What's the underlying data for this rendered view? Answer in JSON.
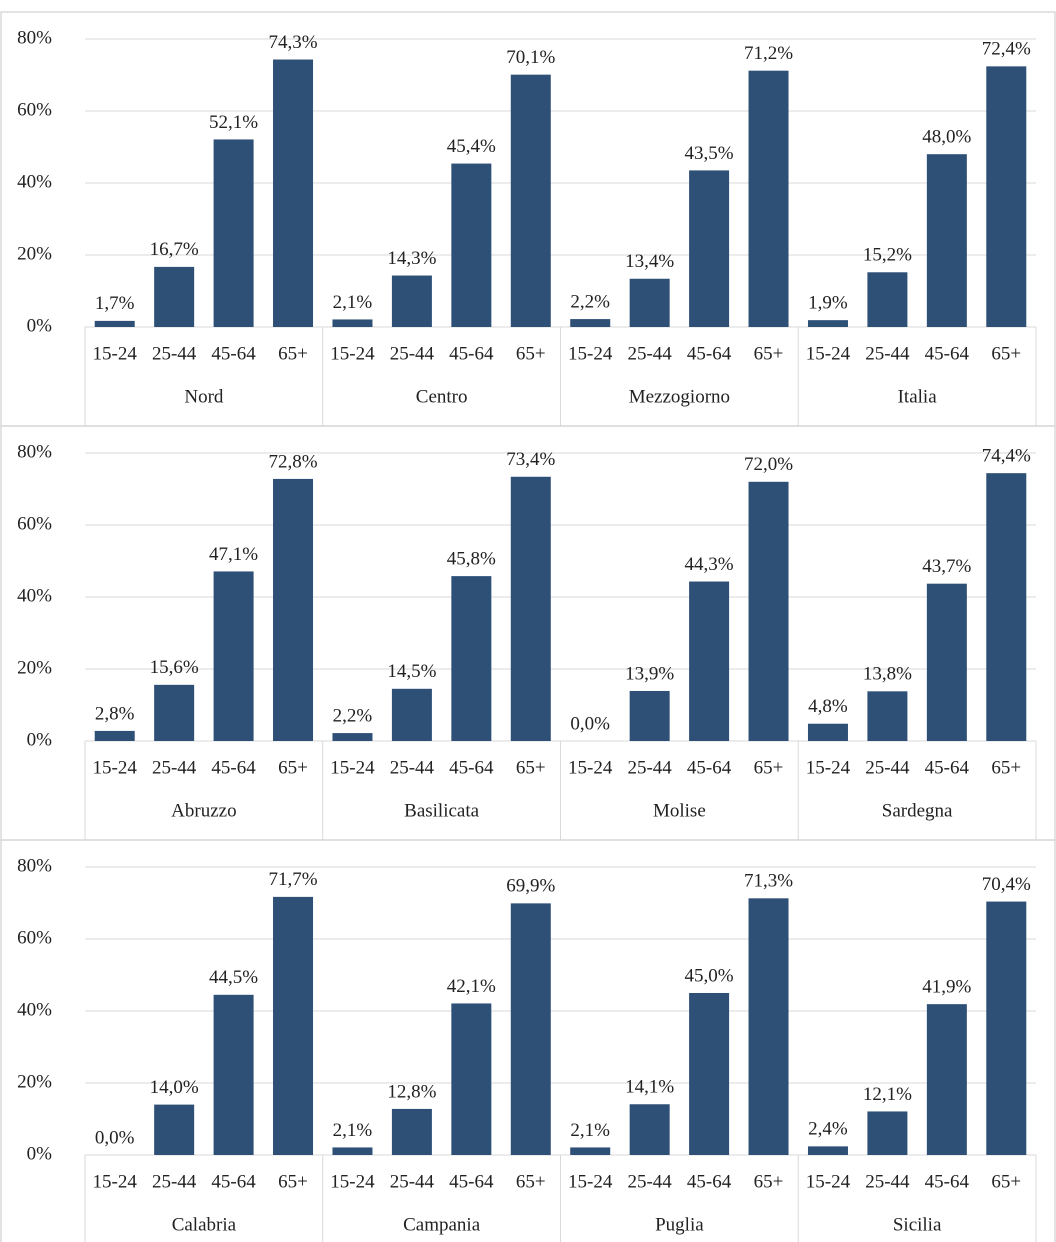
{
  "chart_data": [
    {
      "type": "bar",
      "color": "#2e5077",
      "ylim": [
        0,
        80
      ],
      "grid": true,
      "yticks": [
        {
          "value": 0,
          "label": "0%"
        },
        {
          "value": 20,
          "label": "20%"
        },
        {
          "value": 40,
          "label": "40%"
        },
        {
          "value": 60,
          "label": "60%"
        },
        {
          "value": 80,
          "label": "80%"
        }
      ],
      "groups": [
        {
          "name": "Nord",
          "categories": [
            "15-24",
            "25-44",
            "45-64",
            "65+"
          ],
          "values": [
            1.7,
            16.7,
            52.1,
            74.3
          ],
          "value_labels": [
            "1,7%",
            "16,7%",
            "52,1%",
            "74,3%"
          ]
        },
        {
          "name": "Centro",
          "categories": [
            "15-24",
            "25-44",
            "45-64",
            "65+"
          ],
          "values": [
            2.1,
            14.3,
            45.4,
            70.1
          ],
          "value_labels": [
            "2,1%",
            "14,3%",
            "45,4%",
            "70,1%"
          ]
        },
        {
          "name": "Mezzogiorno",
          "categories": [
            "15-24",
            "25-44",
            "45-64",
            "65+"
          ],
          "values": [
            2.2,
            13.4,
            43.5,
            71.2
          ],
          "value_labels": [
            "2,2%",
            "13,4%",
            "43,5%",
            "71,2%"
          ]
        },
        {
          "name": "Italia",
          "categories": [
            "15-24",
            "25-44",
            "45-64",
            "65+"
          ],
          "values": [
            1.9,
            15.2,
            48.0,
            72.4
          ],
          "value_labels": [
            "1,9%",
            "15,2%",
            "48,0%",
            "72,4%"
          ]
        }
      ]
    },
    {
      "type": "bar",
      "color": "#2e5077",
      "ylim": [
        0,
        80
      ],
      "grid": true,
      "yticks": [
        {
          "value": 0,
          "label": "0%"
        },
        {
          "value": 20,
          "label": "20%"
        },
        {
          "value": 40,
          "label": "40%"
        },
        {
          "value": 60,
          "label": "60%"
        },
        {
          "value": 80,
          "label": "80%"
        }
      ],
      "groups": [
        {
          "name": "Abruzzo",
          "categories": [
            "15-24",
            "25-44",
            "45-64",
            "65+"
          ],
          "values": [
            2.8,
            15.6,
            47.1,
            72.8
          ],
          "value_labels": [
            "2,8%",
            "15,6%",
            "47,1%",
            "72,8%"
          ]
        },
        {
          "name": "Basilicata",
          "categories": [
            "15-24",
            "25-44",
            "45-64",
            "65+"
          ],
          "values": [
            2.2,
            14.5,
            45.8,
            73.4
          ],
          "value_labels": [
            "2,2%",
            "14,5%",
            "45,8%",
            "73,4%"
          ]
        },
        {
          "name": "Molise",
          "categories": [
            "15-24",
            "25-44",
            "45-64",
            "65+"
          ],
          "values": [
            0.0,
            13.9,
            44.3,
            72.0
          ],
          "value_labels": [
            "0,0%",
            "13,9%",
            "44,3%",
            "72,0%"
          ]
        },
        {
          "name": "Sardegna",
          "categories": [
            "15-24",
            "25-44",
            "45-64",
            "65+"
          ],
          "values": [
            4.8,
            13.8,
            43.7,
            74.4
          ],
          "value_labels": [
            "4,8%",
            "13,8%",
            "43,7%",
            "74,4%"
          ]
        }
      ]
    },
    {
      "type": "bar",
      "color": "#2e5077",
      "ylim": [
        0,
        80
      ],
      "grid": true,
      "yticks": [
        {
          "value": 0,
          "label": "0%"
        },
        {
          "value": 20,
          "label": "20%"
        },
        {
          "value": 40,
          "label": "40%"
        },
        {
          "value": 60,
          "label": "60%"
        },
        {
          "value": 80,
          "label": "80%"
        }
      ],
      "groups": [
        {
          "name": "Calabria",
          "categories": [
            "15-24",
            "25-44",
            "45-64",
            "65+"
          ],
          "values": [
            0.0,
            14.0,
            44.5,
            71.7
          ],
          "value_labels": [
            "0,0%",
            "14,0%",
            "44,5%",
            "71,7%"
          ]
        },
        {
          "name": "Campania",
          "categories": [
            "15-24",
            "25-44",
            "45-64",
            "65+"
          ],
          "values": [
            2.1,
            12.8,
            42.1,
            69.9
          ],
          "value_labels": [
            "2,1%",
            "12,8%",
            "42,1%",
            "69,9%"
          ]
        },
        {
          "name": "Puglia",
          "categories": [
            "15-24",
            "25-44",
            "45-64",
            "65+"
          ],
          "values": [
            2.1,
            14.1,
            45.0,
            71.3
          ],
          "value_labels": [
            "2,1%",
            "14,1%",
            "45,0%",
            "71,3%"
          ]
        },
        {
          "name": "Sicilia",
          "categories": [
            "15-24",
            "25-44",
            "45-64",
            "65+"
          ],
          "values": [
            2.4,
            12.1,
            41.9,
            70.4
          ],
          "value_labels": [
            "2,4%",
            "12,1%",
            "41,9%",
            "70,4%"
          ]
        }
      ]
    }
  ]
}
